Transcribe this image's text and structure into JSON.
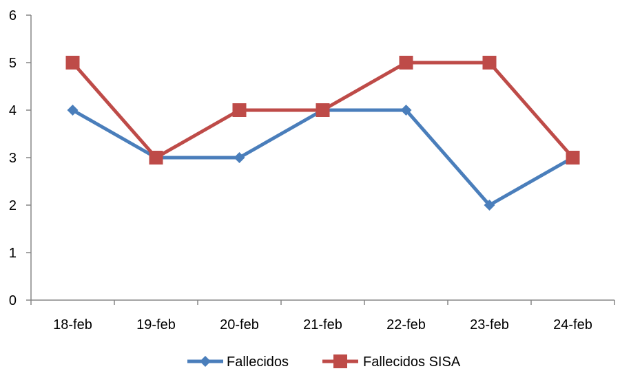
{
  "chart_data": {
    "type": "line",
    "title": "",
    "xlabel": "",
    "ylabel": "",
    "categories": [
      "18-feb",
      "19-feb",
      "20-feb",
      "21-feb",
      "22-feb",
      "23-feb",
      "24-feb"
    ],
    "ylim": [
      0,
      6
    ],
    "yticks": [
      "0",
      "1",
      "2",
      "3",
      "4",
      "5",
      "6"
    ],
    "grid": false,
    "legend_position": "bottom",
    "series": [
      {
        "name": "Fallecidos",
        "values": [
          4,
          3,
          3,
          4,
          4,
          2,
          3
        ],
        "color": "#4a7ebb",
        "marker": "diamond"
      },
      {
        "name": "Fallecidos SISA",
        "values": [
          5,
          3,
          4,
          4,
          5,
          5,
          3
        ],
        "color": "#be4b48",
        "marker": "square"
      }
    ]
  }
}
